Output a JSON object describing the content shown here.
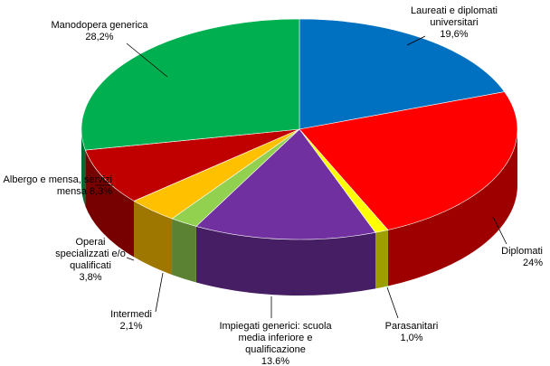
{
  "chart_data": {
    "type": "pie",
    "categories": [
      "Laureati e diplomati universitari",
      "Diplomati",
      "Parasanitari",
      "Impiegati generici: scuola media inferiore e qualificazione",
      "Intermedi",
      "Operai specializzati e/o qualificati",
      "Albergo e mensa, servizi mensa",
      "Manodopera generica"
    ],
    "values": [
      19.6,
      24,
      1.0,
      13.6,
      2.1,
      3.8,
      8.3,
      28.2
    ],
    "value_labels": [
      "19,6%",
      "24%",
      "1,0%",
      "13.6%",
      "2,1%",
      "3,8%",
      "8,3%",
      "28,2%"
    ],
    "colors": [
      "#0070c0",
      "#ff0000",
      "#ffff00",
      "#7030a0",
      "#92d050",
      "#ffc000",
      "#c00000",
      "#00b050"
    ]
  }
}
